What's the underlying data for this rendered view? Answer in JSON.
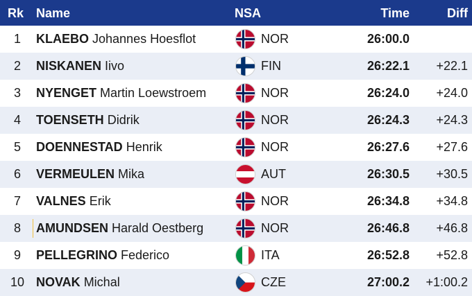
{
  "header": {
    "rank": "Rk",
    "name": "Name",
    "nsa": "NSA",
    "time": "Time",
    "diff": "Diff"
  },
  "rows": [
    {
      "rank": "1",
      "last": "KLAEBO",
      "first": "Johannes Hoesflot",
      "nsa": "NOR",
      "flag": "norway-flag-icon",
      "time": "26:00.0",
      "diff": ""
    },
    {
      "rank": "2",
      "last": "NISKANEN",
      "first": "Iivo",
      "nsa": "FIN",
      "flag": "finland-flag-icon",
      "time": "26:22.1",
      "diff": "+22.1"
    },
    {
      "rank": "3",
      "last": "NYENGET",
      "first": "Martin Loewstroem",
      "nsa": "NOR",
      "flag": "norway-flag-icon",
      "time": "26:24.0",
      "diff": "+24.0"
    },
    {
      "rank": "4",
      "last": "TOENSETH",
      "first": "Didrik",
      "nsa": "NOR",
      "flag": "norway-flag-icon",
      "time": "26:24.3",
      "diff": "+24.3"
    },
    {
      "rank": "5",
      "last": "DOENNESTAD",
      "first": "Henrik",
      "nsa": "NOR",
      "flag": "norway-flag-icon",
      "time": "26:27.6",
      "diff": "+27.6"
    },
    {
      "rank": "6",
      "last": "VERMEULEN",
      "first": "Mika",
      "nsa": "AUT",
      "flag": "austria-flag-icon",
      "time": "26:30.5",
      "diff": "+30.5"
    },
    {
      "rank": "7",
      "last": "VALNES",
      "first": "Erik",
      "nsa": "NOR",
      "flag": "norway-flag-icon",
      "time": "26:34.8",
      "diff": "+34.8"
    },
    {
      "rank": "8",
      "last": "AMUNDSEN",
      "first": "Harald Oestberg",
      "nsa": "NOR",
      "flag": "norway-flag-icon",
      "time": "26:46.8",
      "diff": "+46.8"
    },
    {
      "rank": "9",
      "last": "PELLEGRINO",
      "first": "Federico",
      "nsa": "ITA",
      "flag": "italy-flag-icon",
      "time": "26:52.8",
      "diff": "+52.8"
    },
    {
      "rank": "10",
      "last": "NOVAK",
      "first": "Michal",
      "nsa": "CZE",
      "flag": "czech-flag-icon",
      "time": "27:00.2",
      "diff": "+1:00.2"
    }
  ],
  "colors": {
    "header_bg": "#1b3a8c",
    "row_alt_bg": "#eaeef6",
    "highlight_marker": "#f0c040"
  }
}
